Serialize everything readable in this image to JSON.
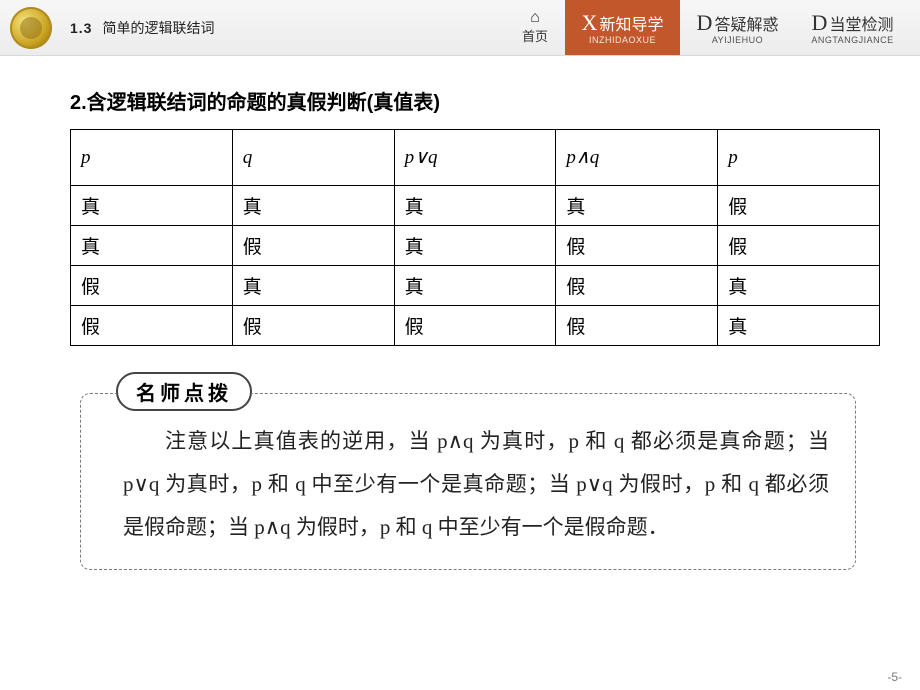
{
  "header": {
    "chapter_num": "1.3",
    "chapter_title": "简单的逻辑联结词",
    "home_label": "首页",
    "tabs": [
      {
        "letter": "X",
        "cn": "新知导学",
        "py": "INZHIDAOXUE",
        "active": true
      },
      {
        "letter": "D",
        "cn": "答疑解惑",
        "py": "AYIJIEHUO",
        "active": false
      },
      {
        "letter": "D",
        "cn": "当堂检测",
        "py": "ANGTANGJIANCE",
        "active": false
      }
    ],
    "colors": {
      "active_tab_bg": "#c2572b",
      "bar_bg": "#ececec"
    }
  },
  "section": {
    "title": "2.含逻辑联结词的命题的真假判断(真值表)"
  },
  "truth_table": {
    "columns": [
      "p",
      "q",
      "p∨q",
      "p∧q",
      "p"
    ],
    "rows": [
      [
        "真",
        "真",
        "真",
        "真",
        "假"
      ],
      [
        "真",
        "假",
        "真",
        "假",
        "假"
      ],
      [
        "假",
        "真",
        "真",
        "假",
        "真"
      ],
      [
        "假",
        "假",
        "假",
        "假",
        "真"
      ]
    ],
    "border_color": "#000000",
    "header_font": "italic serif",
    "cell_fontsize": 19
  },
  "tips": {
    "label": "名师点拨",
    "body": "注意以上真值表的逆用，当 p∧q 为真时，p 和 q 都必须是真命题；当 p∨q 为真时，p 和 q 中至少有一个是真命题；当 p∨q 为假时，p 和 q 都必须是假命题；当 p∧q 为假时，p 和 q 中至少有一个是假命题．",
    "border_style": "dashed",
    "font_family": "KaiTi"
  },
  "page_number": "-5-"
}
